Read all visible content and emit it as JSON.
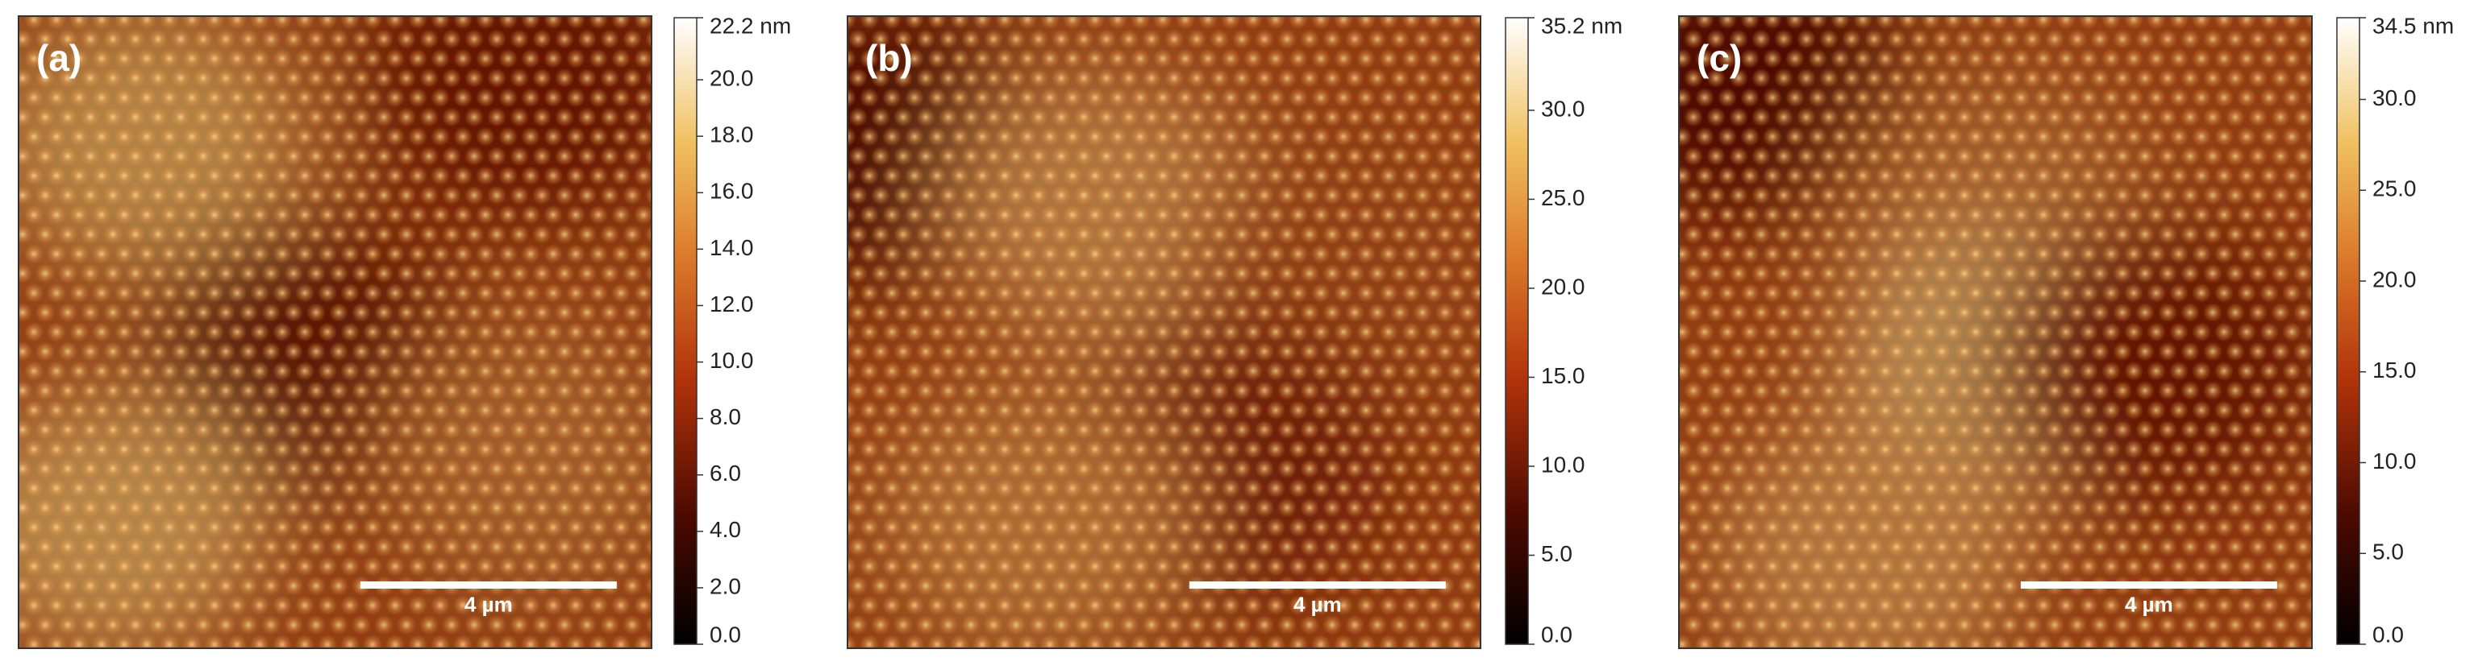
{
  "panels": [
    {
      "label": "(a)",
      "scale_bar": "4 µm",
      "colorbar": {
        "lim": [
          0,
          22.2
        ],
        "ticks": [
          {
            "value": 0,
            "label": "0.0"
          },
          {
            "value": 2,
            "label": "2.0"
          },
          {
            "value": 4,
            "label": "4.0"
          },
          {
            "value": 6,
            "label": "6.0"
          },
          {
            "value": 8,
            "label": "8.0"
          },
          {
            "value": 10,
            "label": "10.0"
          },
          {
            "value": 12,
            "label": "12.0"
          },
          {
            "value": 14,
            "label": "14.0"
          },
          {
            "value": 16,
            "label": "16.0"
          },
          {
            "value": 18,
            "label": "18.0"
          },
          {
            "value": 20,
            "label": "20.0"
          },
          {
            "value": 22.2,
            "label": "22.2 nm"
          }
        ]
      }
    },
    {
      "label": "(b)",
      "scale_bar": "4 µm",
      "colorbar": {
        "lim": [
          0,
          35.2
        ],
        "ticks": [
          {
            "value": 0,
            "label": "0.0"
          },
          {
            "value": 5,
            "label": "5.0"
          },
          {
            "value": 10,
            "label": "10.0"
          },
          {
            "value": 15,
            "label": "15.0"
          },
          {
            "value": 20,
            "label": "20.0"
          },
          {
            "value": 25,
            "label": "25.0"
          },
          {
            "value": 30,
            "label": "30.0"
          },
          {
            "value": 35.2,
            "label": "35.2 nm"
          }
        ]
      }
    },
    {
      "label": "(c)",
      "scale_bar": "4 µm",
      "colorbar": {
        "lim": [
          0,
          34.5
        ],
        "ticks": [
          {
            "value": 0,
            "label": "0.0"
          },
          {
            "value": 5,
            "label": "5.0"
          },
          {
            "value": 10,
            "label": "10.0"
          },
          {
            "value": 15,
            "label": "15.0"
          },
          {
            "value": 20,
            "label": "20.0"
          },
          {
            "value": 25,
            "label": "25.0"
          },
          {
            "value": 30,
            "label": "30.0"
          },
          {
            "value": 34.5,
            "label": "34.5 nm"
          }
        ]
      }
    }
  ]
}
